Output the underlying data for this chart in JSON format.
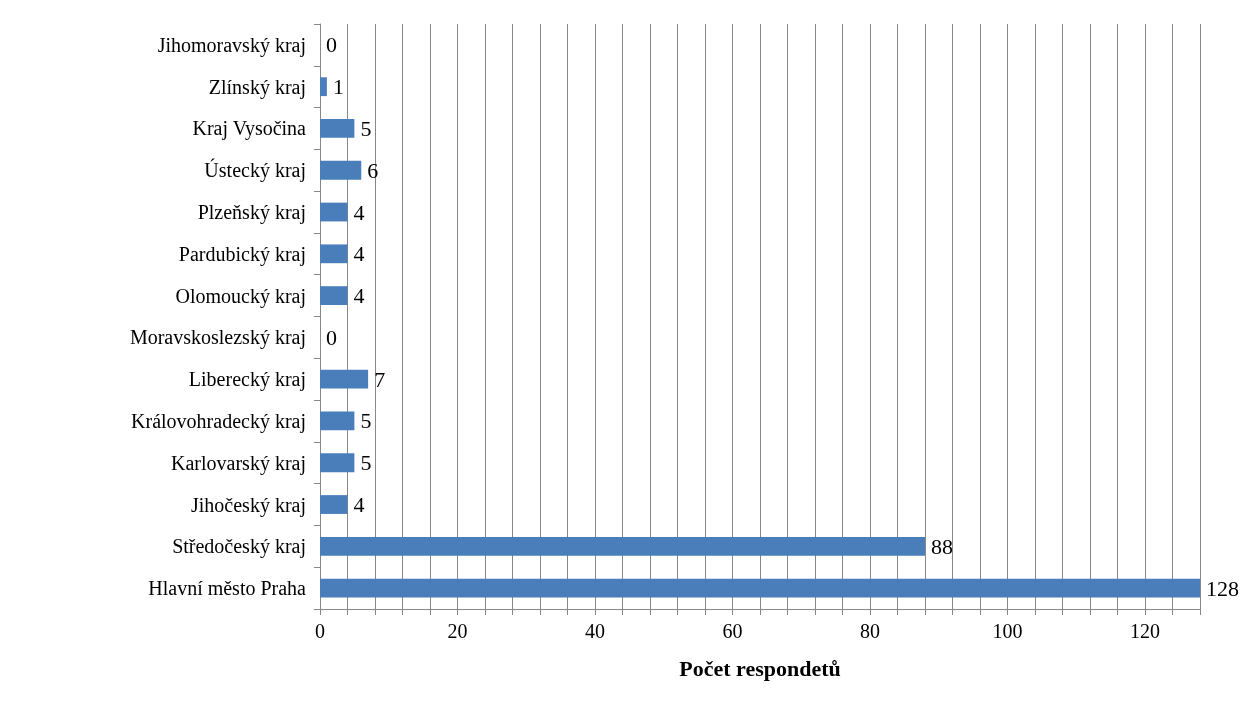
{
  "chart_data": {
    "type": "bar",
    "orientation": "horizontal",
    "xlabel": "Počet respondetů",
    "categories": [
      "Jihomoravský kraj",
      "Zlínský kraj",
      "Kraj Vysočina",
      "Ústecký kraj",
      "Plzeňský kraj",
      "Pardubický kraj",
      "Olomoucký kraj",
      "Moravskoslezský kraj",
      "Liberecký kraj",
      "Královohradecký kraj",
      "Karlovarský kraj",
      "Jihočeský kraj",
      "Středočeský kraj",
      "Hlavní město Praha"
    ],
    "values": [
      0,
      1,
      5,
      6,
      4,
      4,
      4,
      0,
      7,
      5,
      5,
      4,
      88,
      128
    ],
    "color": "#4a7ebb",
    "data_labels": true,
    "grid": "x",
    "xlim": [
      0,
      128
    ],
    "xticks": [
      0,
      {
        "value": 4,
        "label": null
      },
      {
        "value": 8,
        "label": null
      },
      {
        "value": 12,
        "label": null
      },
      {
        "value": 16,
        "label": null
      },
      20,
      {
        "value": 24,
        "label": null
      },
      {
        "value": 28,
        "label": null
      },
      {
        "value": 32,
        "label": null
      },
      {
        "value": 36,
        "label": null
      },
      40,
      {
        "value": 44,
        "label": null
      },
      {
        "value": 48,
        "label": null
      },
      {
        "value": 52,
        "label": null
      },
      {
        "value": 56,
        "label": null
      },
      60,
      {
        "value": 64,
        "label": null
      },
      {
        "value": 68,
        "label": null
      },
      {
        "value": 72,
        "label": null
      },
      {
        "value": 76,
        "label": null
      },
      80,
      {
        "value": 84,
        "label": null
      },
      {
        "value": 88,
        "label": null
      },
      {
        "value": 92,
        "label": null
      },
      {
        "value": 96,
        "label": null
      },
      100,
      {
        "value": 104,
        "label": null
      },
      {
        "value": 108,
        "label": null
      },
      {
        "value": 112,
        "label": null
      },
      {
        "value": 116,
        "label": null
      },
      120,
      {
        "value": 124,
        "label": null
      },
      {
        "value": 128,
        "label": null
      }
    ]
  }
}
